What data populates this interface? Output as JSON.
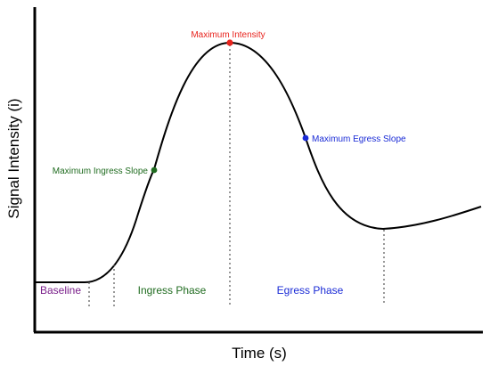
{
  "axes": {
    "xlabel": "Time (s)",
    "ylabel": "Signal Intensity (i)"
  },
  "annotations": {
    "maximum_intensity": "Maximum Intensity",
    "maximum_ingress_slope": "Maximum Ingress Slope",
    "maximum_egress_slope": "Maximum Egress Slope"
  },
  "phases": {
    "baseline": "Baseline",
    "ingress": "Ingress Phase",
    "egress": "Egress Phase"
  },
  "colors": {
    "curve": "#000000",
    "maximum_intensity": "#e8231d",
    "ingress": "#1f6b1f",
    "egress": "#1a2bd6",
    "baseline": "#7a1f8a"
  }
}
